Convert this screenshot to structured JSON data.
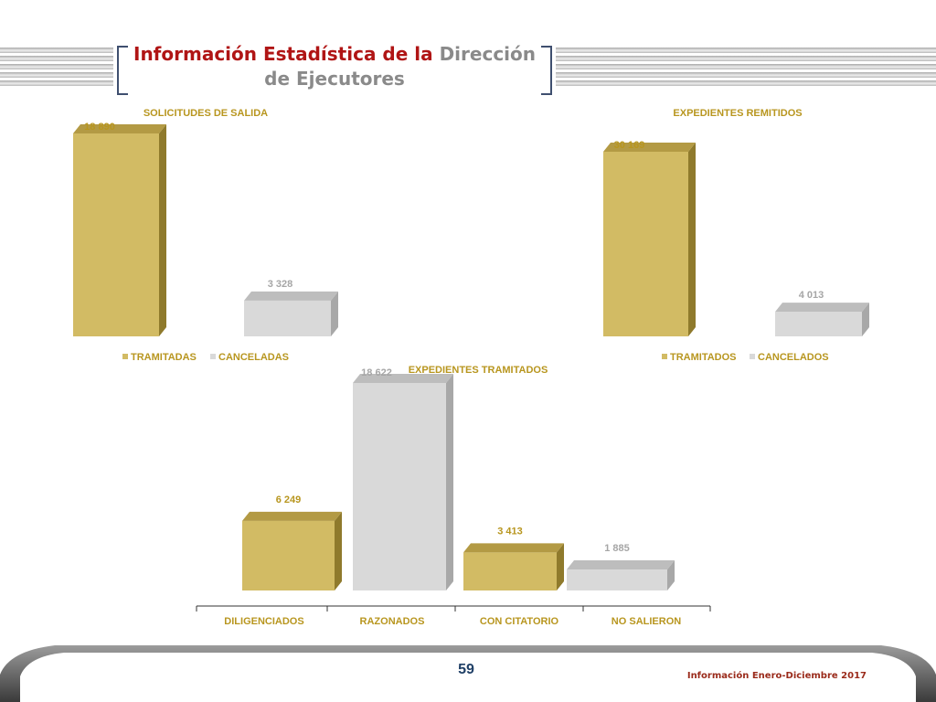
{
  "header": {
    "title_red": "Información Estadística de la",
    "title_gray": "Dirección",
    "title_line2": "de Ejecutores"
  },
  "footer": {
    "page_number": "59",
    "period": "Información Enero-Diciembre 2017"
  },
  "colors": {
    "gold": "#d2bb64",
    "gold_side": "#8f7a2c",
    "gold_top": "#b39a44",
    "gray": "#d9d9d9",
    "gray_side": "#a8a8a8",
    "gray_top": "#bdbdbd",
    "label_gold": "#b8961f",
    "label_gray": "#a6a6a6",
    "accent_red": "#b01515",
    "footer_blue": "#1f3f66"
  },
  "chart_data": [
    {
      "type": "bar",
      "title": "SOLICITUDES DE SALIDA",
      "series": [
        {
          "name": "TRAMITADAS",
          "value": 18890,
          "label": "18 890",
          "color": "gold"
        },
        {
          "name": "CANCELADAS",
          "value": 3328,
          "label": "3 328",
          "color": "gray"
        }
      ],
      "legend": "bottom"
    },
    {
      "type": "bar",
      "title": "EXPEDIENTES REMITIDOS",
      "series": [
        {
          "name": "TRAMITADOS",
          "value": 30169,
          "label": "30 169",
          "color": "gold"
        },
        {
          "name": "CANCELADOS",
          "value": 4013,
          "label": "4 013",
          "color": "gray"
        }
      ],
      "legend": "bottom"
    },
    {
      "type": "bar",
      "title": "EXPEDIENTES TRAMITADOS",
      "categories": [
        "DILIGENCIADOS",
        "RAZONADOS",
        "CON CITATORIO",
        "NO SALIERON"
      ],
      "values": [
        6249,
        18622,
        3413,
        1885
      ],
      "labels": [
        "6 249",
        "18 622",
        "3 413",
        "1 885"
      ],
      "colors": [
        "gold",
        "gray",
        "gold",
        "gray"
      ]
    }
  ]
}
